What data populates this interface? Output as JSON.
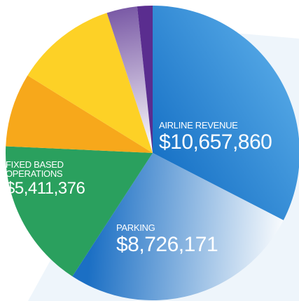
{
  "chart_data": {
    "type": "pie",
    "categories": [
      "AIRLINE REVENUE",
      "PARKING",
      "FIXED BASED OPERATIONS",
      null,
      null,
      null,
      null
    ],
    "values": [
      10657860,
      8726171,
      5411376,
      2650000,
      3650000,
      1100000,
      550000
    ],
    "value_labels": [
      "$10,657,860",
      "$8,726,171",
      "$5,411,376",
      null,
      null,
      null,
      null
    ],
    "colors": [
      "#1872c6",
      "#1b6fc4",
      "#2aa05e",
      "#f7a81b",
      "#fdd126",
      "#7a5aa6",
      "#5a2d8f"
    ],
    "gradient_to": [
      "#4fa3e3",
      "#ffffff",
      null,
      null,
      null,
      "#ffffff",
      null
    ]
  }
}
